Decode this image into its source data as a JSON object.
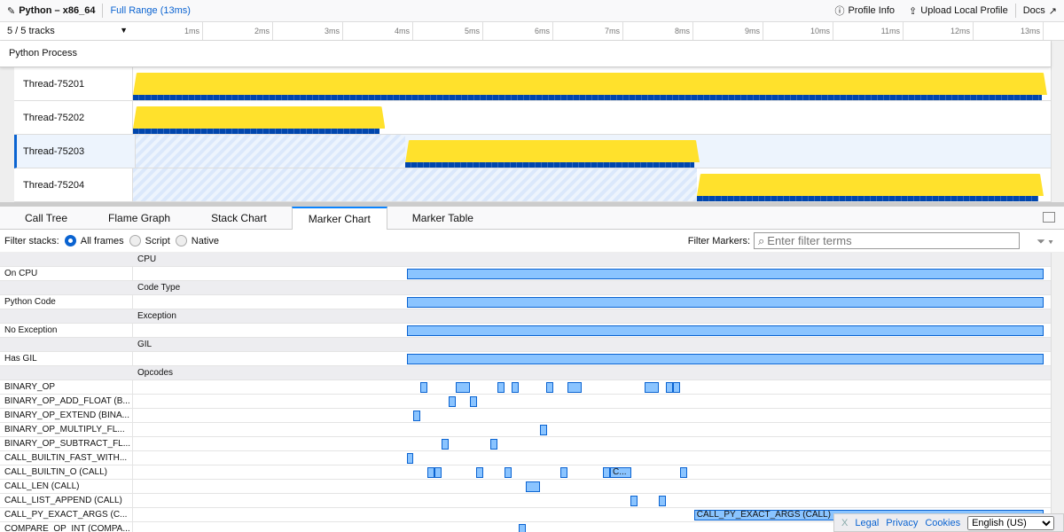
{
  "header": {
    "title": "Python – x86_64",
    "range": "Full Range (13ms)",
    "profile_info": "Profile Info",
    "upload": "Upload Local Profile",
    "docs": "Docs"
  },
  "timeline": {
    "tracks_count": "5 / 5 tracks",
    "ticks": [
      "1ms",
      "2ms",
      "3ms",
      "4ms",
      "5ms",
      "6ms",
      "7ms",
      "8ms",
      "9ms",
      "10ms",
      "11ms",
      "12ms",
      "13ms"
    ],
    "process": "Python Process",
    "threads": [
      {
        "name": "Thread-75201",
        "active": [
          0,
          13.05
        ],
        "selected": false,
        "hatch_until": 0
      },
      {
        "name": "Thread-75202",
        "active": [
          0,
          3.6
        ],
        "selected": false,
        "hatch_until": 0
      },
      {
        "name": "Thread-75203",
        "active": [
          3.85,
          8.05
        ],
        "selected": true,
        "hatch_until": 3.85
      },
      {
        "name": "Thread-75204",
        "active": [
          8.05,
          13.0
        ],
        "selected": false,
        "hatch_until": 8.05
      }
    ]
  },
  "tabs": [
    {
      "label": "Call Tree"
    },
    {
      "label": "Flame Graph"
    },
    {
      "label": "Stack Chart"
    },
    {
      "label": "Marker Chart",
      "active": true
    },
    {
      "label": "Marker Table"
    }
  ],
  "filter": {
    "label": "Filter stacks:",
    "options": [
      {
        "label": "All frames",
        "checked": true
      },
      {
        "label": "Script"
      },
      {
        "label": "Native"
      }
    ],
    "markers_label": "Filter Markers:",
    "placeholder": "Enter filter terms"
  },
  "markers": [
    {
      "category": "CPU",
      "rows": [
        {
          "name": "On CPU",
          "m": [
            [
              3.91,
              13.0
            ]
          ]
        }
      ]
    },
    {
      "category": "Code Type",
      "rows": [
        {
          "name": "Python Code",
          "m": [
            [
              3.91,
              13.0
            ]
          ]
        }
      ]
    },
    {
      "category": "Exception",
      "rows": [
        {
          "name": "No Exception",
          "m": [
            [
              3.91,
              13.0
            ]
          ]
        }
      ]
    },
    {
      "category": "GIL",
      "rows": [
        {
          "name": "Has GIL",
          "m": [
            [
              3.91,
              13.0
            ]
          ]
        }
      ]
    },
    {
      "category": "Opcodes",
      "rows": [
        {
          "name": "BINARY_OP",
          "m": [
            [
              4.1,
              4.2
            ],
            [
              4.61,
              4.81
            ],
            [
              5.2,
              5.3
            ],
            [
              5.41,
              5.51
            ],
            [
              5.9,
              6.0
            ],
            [
              6.2,
              6.41
            ],
            [
              7.3,
              7.51
            ],
            [
              7.61,
              7.71
            ],
            [
              7.71,
              7.81
            ]
          ]
        },
        {
          "name": "BINARY_OP_ADD_FLOAT (B...",
          "m": [
            [
              4.51,
              4.61
            ],
            [
              4.81,
              4.91
            ]
          ]
        },
        {
          "name": "BINARY_OP_EXTEND (BINA...",
          "m": [
            [
              4.0,
              4.1
            ]
          ]
        },
        {
          "name": "BINARY_OP_MULTIPLY_FL...",
          "m": [
            [
              5.81,
              5.91
            ]
          ]
        },
        {
          "name": "BINARY_OP_SUBTRACT_FL...",
          "m": [
            [
              4.41,
              4.51
            ],
            [
              5.1,
              5.2
            ]
          ]
        },
        {
          "name": "CALL_BUILTIN_FAST_WITH...",
          "m": [
            [
              3.91,
              4.0
            ]
          ]
        },
        {
          "name": "CALL_BUILTIN_O (CALL)",
          "m": [
            [
              4.2,
              4.3
            ],
            [
              4.3,
              4.41
            ],
            [
              4.9,
              5.0
            ],
            [
              5.3,
              5.41
            ],
            [
              6.1,
              6.2
            ],
            [
              6.71,
              6.81
            ],
            [
              6.81,
              7.11,
              "C..."
            ],
            [
              7.81,
              7.91
            ]
          ]
        },
        {
          "name": "CALL_LEN (CALL)",
          "m": [
            [
              5.61,
              5.81
            ]
          ]
        },
        {
          "name": "CALL_LIST_APPEND (CALL)",
          "m": [
            [
              7.1,
              7.2
            ],
            [
              7.51,
              7.61
            ]
          ]
        },
        {
          "name": "CALL_PY_EXACT_ARGS (C...",
          "m": [
            [
              8.01,
              13.0,
              "CALL_PY_EXACT_ARGS (CALL)"
            ]
          ]
        },
        {
          "name": "COMPARE_OP_INT (COMPA...",
          "m": [
            [
              5.51,
              5.61
            ]
          ]
        }
      ]
    }
  ],
  "footer": {
    "close": "X",
    "legal": "Legal",
    "privacy": "Privacy",
    "cookies": "Cookies",
    "language": "English (US)"
  }
}
